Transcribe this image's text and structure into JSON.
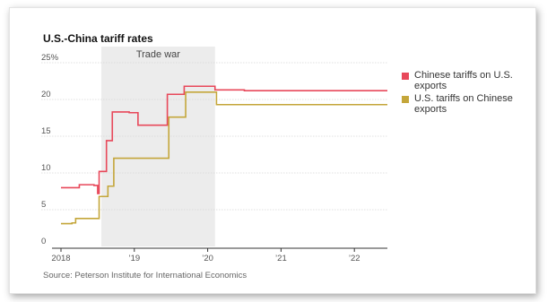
{
  "chart_data": {
    "type": "line",
    "title": "U.S.-China tariff rates",
    "annotation": "Trade war",
    "source": "Source: Peterson Institute for International Economics",
    "xlim": [
      2018.0,
      2022.45
    ],
    "ylim": [
      0,
      25
    ],
    "xticks": [
      {
        "value": 2018.0,
        "label": "2018"
      },
      {
        "value": 2019.0,
        "label": "’19"
      },
      {
        "value": 2020.0,
        "label": "’20"
      },
      {
        "value": 2021.0,
        "label": "’21"
      },
      {
        "value": 2022.0,
        "label": "’22"
      }
    ],
    "yticks": [
      {
        "value": 0,
        "label": "0"
      },
      {
        "value": 5,
        "label": "5"
      },
      {
        "value": 10,
        "label": "10"
      },
      {
        "value": 15,
        "label": "15"
      },
      {
        "value": 20,
        "label": "20"
      },
      {
        "value": 25,
        "label": "25%"
      }
    ],
    "shaded_range": [
      2018.55,
      2020.1
    ],
    "grid": true,
    "legend_position": "right",
    "step": true,
    "series": [
      {
        "name": "Chinese tariffs on U.S. exports",
        "color": "#e8485a",
        "points": [
          [
            2018.0,
            8.0
          ],
          [
            2018.25,
            8.4
          ],
          [
            2018.45,
            8.3
          ],
          [
            2018.5,
            7.2
          ],
          [
            2018.52,
            10.2
          ],
          [
            2018.62,
            14.4
          ],
          [
            2018.7,
            18.3
          ],
          [
            2018.93,
            18.2
          ],
          [
            2019.05,
            16.5
          ],
          [
            2019.45,
            20.7
          ],
          [
            2019.68,
            21.8
          ],
          [
            2020.1,
            21.3
          ],
          [
            2020.5,
            21.2
          ],
          [
            2022.45,
            21.2
          ]
        ]
      },
      {
        "name": "U.S. tariffs on Chinese exports",
        "color": "#c4a63a",
        "points": [
          [
            2018.0,
            3.1
          ],
          [
            2018.15,
            3.2
          ],
          [
            2018.2,
            3.8
          ],
          [
            2018.5,
            3.8
          ],
          [
            2018.52,
            6.8
          ],
          [
            2018.64,
            8.2
          ],
          [
            2018.72,
            12.0
          ],
          [
            2019.45,
            12.0
          ],
          [
            2019.47,
            17.6
          ],
          [
            2019.7,
            21.0
          ],
          [
            2020.12,
            19.3
          ],
          [
            2022.45,
            19.3
          ]
        ]
      }
    ]
  }
}
